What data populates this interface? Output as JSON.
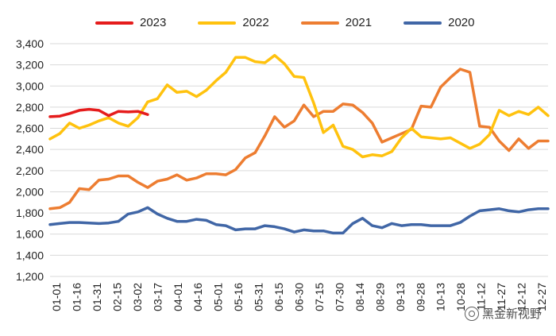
{
  "chart_data": {
    "type": "line",
    "title": "",
    "xlabel": "",
    "ylabel": "",
    "ylim": [
      1200,
      3400
    ],
    "y_ticks": [
      "1,200",
      "1,400",
      "1,600",
      "1,800",
      "2,000",
      "2,200",
      "2,400",
      "2,600",
      "2,800",
      "3,000",
      "3,200",
      "3,400"
    ],
    "x_ticks": [
      "01-01",
      "01-16",
      "01-31",
      "02-15",
      "03-02",
      "03-17",
      "04-01",
      "04-16",
      "05-01",
      "05-16",
      "05-31",
      "06-15",
      "06-30",
      "07-15",
      "07-30",
      "08-14",
      "08-29",
      "09-13",
      "09-28",
      "10-13",
      "10-28",
      "11-12",
      "11-27",
      "12-12",
      "12-27"
    ],
    "grid": "horizontal",
    "legend_position": "top",
    "series": [
      {
        "name": "2023",
        "color": "#e51c1c",
        "points": [
          [
            0,
            2710
          ],
          [
            5,
            2715
          ],
          [
            10,
            2740
          ],
          [
            15,
            2770
          ],
          [
            20,
            2780
          ],
          [
            25,
            2770
          ],
          [
            30,
            2720
          ],
          [
            35,
            2760
          ],
          [
            40,
            2755
          ],
          [
            45,
            2760
          ],
          [
            50,
            2730
          ]
        ]
      },
      {
        "name": "2022",
        "color": "#ffc20e",
        "points": [
          [
            0,
            2500
          ],
          [
            5,
            2550
          ],
          [
            10,
            2650
          ],
          [
            15,
            2600
          ],
          [
            20,
            2630
          ],
          [
            25,
            2670
          ],
          [
            30,
            2700
          ],
          [
            35,
            2650
          ],
          [
            40,
            2620
          ],
          [
            45,
            2700
          ],
          [
            50,
            2850
          ],
          [
            55,
            2880
          ],
          [
            60,
            3010
          ],
          [
            65,
            2940
          ],
          [
            70,
            2950
          ],
          [
            75,
            2900
          ],
          [
            80,
            2960
          ],
          [
            85,
            3050
          ],
          [
            90,
            3130
          ],
          [
            95,
            3270
          ],
          [
            100,
            3270
          ],
          [
            105,
            3230
          ],
          [
            110,
            3220
          ],
          [
            115,
            3290
          ],
          [
            120,
            3210
          ],
          [
            125,
            3090
          ],
          [
            130,
            3080
          ],
          [
            135,
            2840
          ],
          [
            140,
            2560
          ],
          [
            145,
            2630
          ],
          [
            150,
            2430
          ],
          [
            155,
            2400
          ],
          [
            160,
            2330
          ],
          [
            165,
            2350
          ],
          [
            170,
            2340
          ],
          [
            175,
            2380
          ],
          [
            180,
            2510
          ],
          [
            185,
            2600
          ],
          [
            190,
            2520
          ],
          [
            195,
            2510
          ],
          [
            200,
            2500
          ],
          [
            205,
            2510
          ],
          [
            210,
            2460
          ],
          [
            215,
            2410
          ],
          [
            220,
            2450
          ],
          [
            225,
            2540
          ],
          [
            230,
            2770
          ],
          [
            235,
            2720
          ],
          [
            240,
            2760
          ],
          [
            245,
            2730
          ],
          [
            250,
            2800
          ],
          [
            255,
            2720
          ]
        ]
      },
      {
        "name": "2021",
        "color": "#ed7d31",
        "points": [
          [
            0,
            1840
          ],
          [
            5,
            1850
          ],
          [
            10,
            1900
          ],
          [
            15,
            2030
          ],
          [
            20,
            2020
          ],
          [
            25,
            2110
          ],
          [
            30,
            2120
          ],
          [
            35,
            2150
          ],
          [
            40,
            2150
          ],
          [
            45,
            2090
          ],
          [
            50,
            2040
          ],
          [
            55,
            2100
          ],
          [
            60,
            2120
          ],
          [
            65,
            2160
          ],
          [
            70,
            2110
          ],
          [
            75,
            2130
          ],
          [
            80,
            2170
          ],
          [
            85,
            2170
          ],
          [
            90,
            2160
          ],
          [
            95,
            2210
          ],
          [
            100,
            2320
          ],
          [
            105,
            2370
          ],
          [
            110,
            2530
          ],
          [
            115,
            2710
          ],
          [
            120,
            2610
          ],
          [
            125,
            2670
          ],
          [
            130,
            2820
          ],
          [
            135,
            2710
          ],
          [
            140,
            2760
          ],
          [
            145,
            2760
          ],
          [
            150,
            2830
          ],
          [
            155,
            2820
          ],
          [
            160,
            2750
          ],
          [
            165,
            2650
          ],
          [
            170,
            2470
          ],
          [
            175,
            2510
          ],
          [
            180,
            2550
          ],
          [
            185,
            2590
          ],
          [
            190,
            2810
          ],
          [
            195,
            2800
          ],
          [
            200,
            2990
          ],
          [
            205,
            3080
          ],
          [
            210,
            3160
          ],
          [
            215,
            3130
          ],
          [
            220,
            2620
          ],
          [
            225,
            2610
          ],
          [
            230,
            2480
          ],
          [
            235,
            2390
          ],
          [
            240,
            2500
          ],
          [
            245,
            2410
          ],
          [
            250,
            2480
          ],
          [
            255,
            2480
          ]
        ]
      },
      {
        "name": "2020",
        "color": "#4066a6",
        "points": [
          [
            0,
            1690
          ],
          [
            5,
            1700
          ],
          [
            10,
            1710
          ],
          [
            15,
            1710
          ],
          [
            20,
            1705
          ],
          [
            25,
            1700
          ],
          [
            30,
            1705
          ],
          [
            35,
            1720
          ],
          [
            40,
            1790
          ],
          [
            45,
            1810
          ],
          [
            50,
            1850
          ],
          [
            55,
            1790
          ],
          [
            60,
            1750
          ],
          [
            65,
            1720
          ],
          [
            70,
            1720
          ],
          [
            75,
            1740
          ],
          [
            80,
            1730
          ],
          [
            85,
            1690
          ],
          [
            90,
            1680
          ],
          [
            95,
            1640
          ],
          [
            100,
            1650
          ],
          [
            105,
            1650
          ],
          [
            110,
            1680
          ],
          [
            115,
            1670
          ],
          [
            120,
            1650
          ],
          [
            125,
            1620
          ],
          [
            130,
            1640
          ],
          [
            135,
            1630
          ],
          [
            140,
            1630
          ],
          [
            145,
            1610
          ],
          [
            150,
            1610
          ],
          [
            155,
            1700
          ],
          [
            160,
            1750
          ],
          [
            165,
            1680
          ],
          [
            170,
            1660
          ],
          [
            175,
            1700
          ],
          [
            180,
            1680
          ],
          [
            185,
            1690
          ],
          [
            190,
            1690
          ],
          [
            195,
            1680
          ],
          [
            200,
            1680
          ],
          [
            205,
            1680
          ],
          [
            210,
            1710
          ],
          [
            215,
            1770
          ],
          [
            220,
            1820
          ],
          [
            225,
            1830
          ],
          [
            230,
            1840
          ],
          [
            235,
            1820
          ],
          [
            240,
            1810
          ],
          [
            245,
            1830
          ],
          [
            250,
            1840
          ],
          [
            255,
            1840
          ]
        ]
      }
    ]
  },
  "watermark": {
    "text": "黑金新视野",
    "icon": "wechat-icon"
  }
}
